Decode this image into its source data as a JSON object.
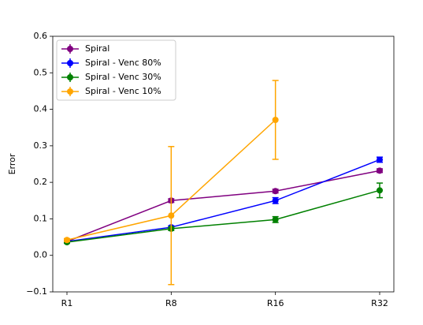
{
  "chart_data": {
    "type": "line",
    "y_label": "Error",
    "categories": [
      "R1",
      "R8",
      "R16",
      "R32"
    ],
    "ylim": [
      -0.1,
      0.6
    ],
    "yticks": [
      {
        "value": -0.1,
        "label": "−0.1"
      },
      {
        "value": 0,
        "label": "0.0"
      },
      0.1,
      0.2,
      0.3,
      0.4,
      0.5,
      0.6
    ],
    "legend": "upper left",
    "series": [
      {
        "name": "Spiral",
        "color": "#800080",
        "values": [
          0.038,
          0.15,
          0.176,
          0.232
        ],
        "errors": [
          0.003,
          0.005,
          0.005,
          0.005
        ]
      },
      {
        "name": "Spiral - Venc 80%",
        "color": "#0000ff",
        "values": [
          0.038,
          0.077,
          0.15,
          0.262
        ],
        "errors": [
          0.003,
          0.004,
          0.008,
          0.007
        ]
      },
      {
        "name": "Spiral - Venc 30%",
        "color": "#008000",
        "values": [
          0.036,
          0.073,
          0.098,
          0.178
        ],
        "errors": [
          0.003,
          0.005,
          0.008,
          0.02
        ]
      },
      {
        "name": "Spiral - Venc 10%",
        "color": "#ffa500",
        "values": [
          0.042,
          0.109,
          0.371,
          null
        ],
        "errors": [
          0.004,
          0.189,
          0.108,
          null
        ]
      }
    ]
  }
}
